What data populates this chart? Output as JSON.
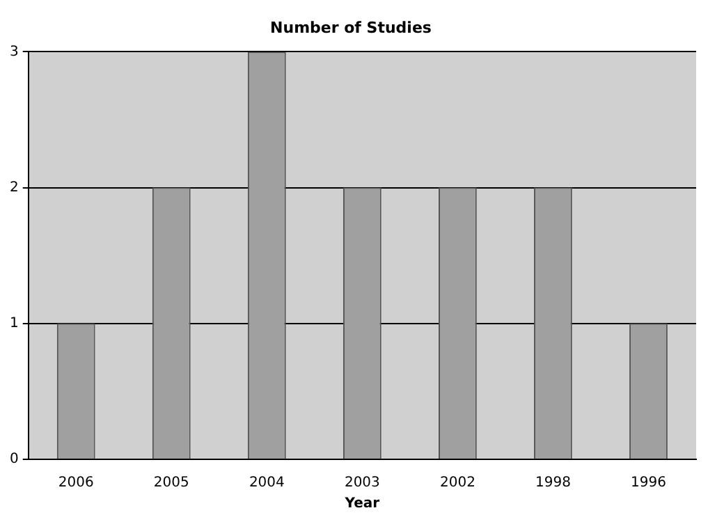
{
  "chart_data": {
    "type": "bar",
    "title": "Number of Studies",
    "xlabel": "Year",
    "categories": [
      "2006",
      "2005",
      "2004",
      "2003",
      "2002",
      "1998",
      "1996"
    ],
    "values": [
      1,
      2,
      3,
      2,
      2,
      2,
      1
    ],
    "color": "#a0a0a0",
    "ylim": [
      0,
      3
    ],
    "yticks": [
      0,
      1,
      2,
      3
    ],
    "grid": "y",
    "legend": false
  }
}
